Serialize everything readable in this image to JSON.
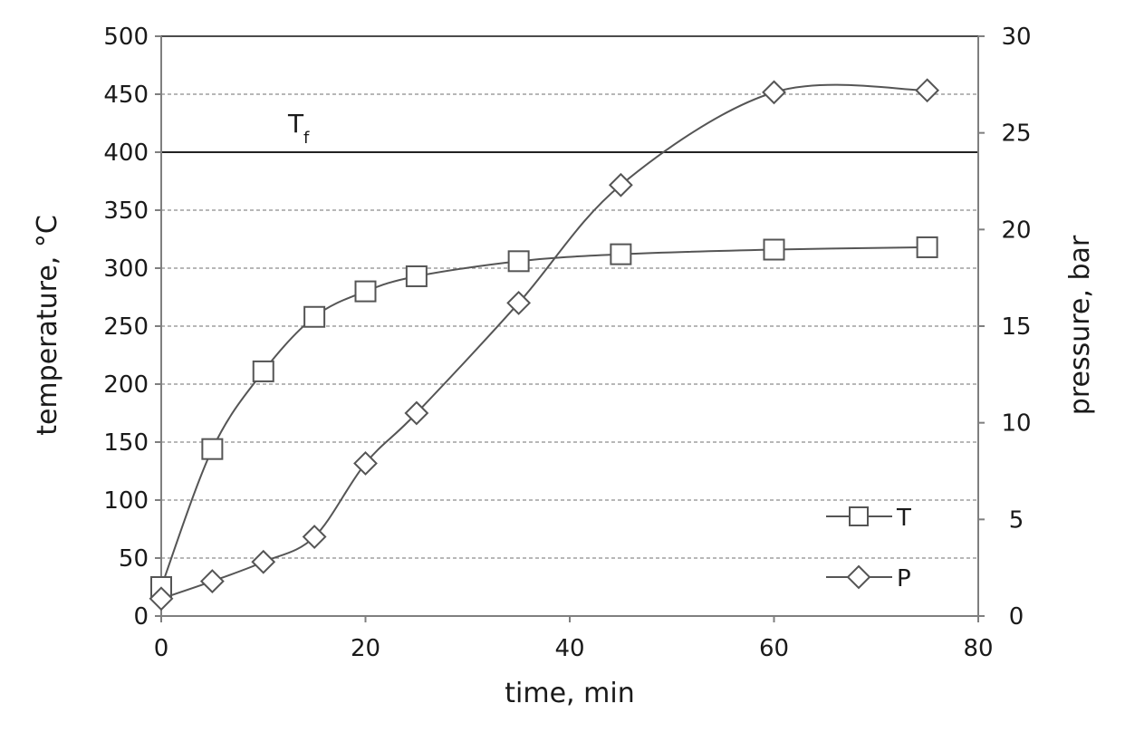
{
  "chart_data": {
    "type": "line",
    "xlabel": "time, min",
    "ylabel": "temperature, °C",
    "y2label": "pressure, bar",
    "xlim": [
      0,
      80
    ],
    "ylim": [
      0,
      500
    ],
    "y2lim": [
      0,
      30
    ],
    "x_ticks": [
      "0",
      "20",
      "40",
      "60",
      "80"
    ],
    "y_ticks": [
      "0",
      "50",
      "100",
      "150",
      "200",
      "250",
      "300",
      "350",
      "400",
      "450",
      "500"
    ],
    "y2_ticks": [
      "0",
      "5",
      "10",
      "15",
      "20",
      "25",
      "30"
    ],
    "grid": "horizontal dashed",
    "legend_position": "bottom-right",
    "annotation": {
      "label": "T",
      "subscript": "f",
      "value": 400
    },
    "series": [
      {
        "name": "T",
        "axis": "left",
        "marker": "square",
        "x": [
          0,
          5,
          10,
          15,
          20,
          25,
          35,
          45,
          60,
          75
        ],
        "y": [
          25,
          144,
          211,
          258,
          280,
          293,
          306,
          312,
          316,
          318
        ]
      },
      {
        "name": "P",
        "axis": "right",
        "marker": "diamond",
        "x": [
          0,
          5,
          10,
          15,
          20,
          25,
          35,
          45,
          60,
          75
        ],
        "y": [
          0.9,
          1.8,
          2.8,
          4.1,
          7.9,
          10.5,
          16.2,
          22.3,
          27.1,
          27.2
        ]
      }
    ],
    "colors": {
      "line": "#555555",
      "axis": "#7f7f7f",
      "grid": "#8c8c8c",
      "text": "#1a1a1a"
    }
  }
}
